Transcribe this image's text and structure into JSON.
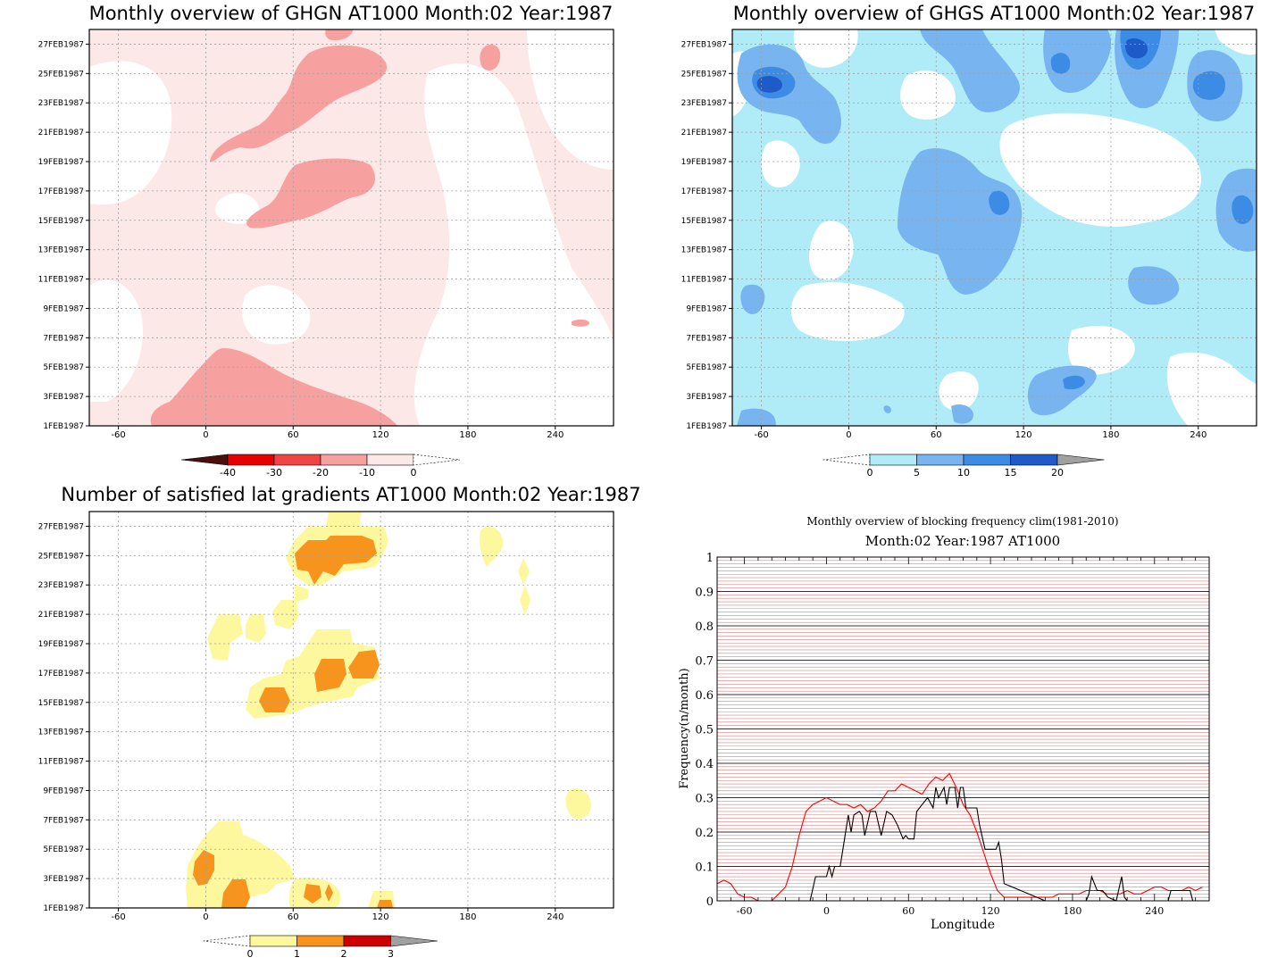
{
  "chart_data": [
    {
      "type": "heatmap",
      "title": "Monthly overview of GHGN AT1000 Month:02 Year:1987",
      "xticks": [
        "-60",
        "0",
        "60",
        "120",
        "180",
        "240"
      ],
      "xtick_values": [
        -60,
        0,
        60,
        120,
        180,
        240
      ],
      "xlim": [
        -80,
        280
      ],
      "yticks": [
        "1FEB1987",
        "3FEB1987",
        "5FEB1987",
        "7FEB1987",
        "9FEB1987",
        "11FEB1987",
        "13FEB1987",
        "15FEB1987",
        "17FEB1987",
        "19FEB1987",
        "21FEB1987",
        "23FEB1987",
        "25FEB1987",
        "27FEB1987"
      ],
      "colorbar": {
        "labels": [
          "-40",
          "-30",
          "-20",
          "-10",
          "0"
        ],
        "colors": [
          "#4a0e0e",
          "#e60000",
          "#f04545",
          "#f7a0a0",
          "#fde8e8"
        ]
      },
      "colors": {
        "light": "#fde8e8",
        "medium": "#f7a0a0"
      }
    },
    {
      "type": "heatmap",
      "title": "Monthly overview of GHGS AT1000 Month:02 Year:1987",
      "xticks": [
        "-60",
        "0",
        "60",
        "120",
        "180",
        "240"
      ],
      "xtick_values": [
        -60,
        0,
        60,
        120,
        180,
        240
      ],
      "xlim": [
        -80,
        280
      ],
      "yticks": [
        "1FEB1987",
        "3FEB1987",
        "5FEB1987",
        "7FEB1987",
        "9FEB1987",
        "11FEB1987",
        "13FEB1987",
        "15FEB1987",
        "17FEB1987",
        "19FEB1987",
        "21FEB1987",
        "23FEB1987",
        "25FEB1987",
        "27FEB1987"
      ],
      "colorbar": {
        "labels": [
          "0",
          "5",
          "10",
          "15",
          "20"
        ],
        "colors": [
          "#b0ecf7",
          "#78b4f0",
          "#3c8ce6",
          "#1e5ac8",
          "#a0a0a0"
        ]
      },
      "colors": {
        "light": "#b0ecf7",
        "medium": "#78b4f0",
        "dark": "#3c8ce6",
        "darkest": "#1e5ac8"
      }
    },
    {
      "type": "heatmap",
      "title": "Number of satisfied lat gradients AT1000 Month:02 Year:1987",
      "xticks": [
        "-60",
        "0",
        "60",
        "120",
        "180",
        "240"
      ],
      "xtick_values": [
        -60,
        0,
        60,
        120,
        180,
        240
      ],
      "xlim": [
        -80,
        280
      ],
      "yticks": [
        "1FEB1987",
        "3FEB1987",
        "5FEB1987",
        "7FEB1987",
        "9FEB1987",
        "11FEB1987",
        "13FEB1987",
        "15FEB1987",
        "17FEB1987",
        "19FEB1987",
        "21FEB1987",
        "23FEB1987",
        "25FEB1987",
        "27FEB1987"
      ],
      "colorbar": {
        "labels": [
          "0",
          "1",
          "2",
          "3"
        ],
        "colors": [
          "#fdf89e",
          "#f7941d",
          "#cc0000",
          "#a0a0a0"
        ]
      },
      "colors": {
        "low": "#fdf89e",
        "mid": "#f7941d"
      }
    },
    {
      "type": "line",
      "title": "Monthly overview of blocking frequency clim(1981-2010)",
      "subtitle": "Month:02 Year:1987  AT1000",
      "xlabel": "Longitude",
      "ylabel": "Frequency(n/month)",
      "xlim": [
        -80,
        280
      ],
      "ylim": [
        0,
        1
      ],
      "xticks": [
        "-60",
        "0",
        "60",
        "120",
        "180",
        "240"
      ],
      "xtick_values": [
        -60,
        0,
        60,
        120,
        180,
        240
      ],
      "yticks": [
        "0",
        "0.1",
        "0.2",
        "0.3",
        "0.4",
        "0.5",
        "0.6",
        "0.7",
        "0.8",
        "0.9",
        "1"
      ],
      "ytick_values": [
        0,
        0.1,
        0.2,
        0.3,
        0.4,
        0.5,
        0.6,
        0.7,
        0.8,
        0.9,
        1
      ],
      "series": [
        {
          "color": "#ff0000",
          "x": [
            -80,
            -75,
            -70,
            -65,
            -60,
            -55,
            -50,
            -45,
            -40,
            -35,
            -30,
            -25,
            -20,
            -15,
            -10,
            -5,
            0,
            5,
            10,
            15,
            20,
            25,
            30,
            35,
            40,
            45,
            50,
            55,
            60,
            65,
            70,
            75,
            80,
            85,
            90,
            95,
            100,
            105,
            110,
            115,
            120,
            125,
            130,
            135,
            140,
            145,
            150,
            155,
            160,
            165,
            170,
            175,
            180,
            185,
            190,
            195,
            200,
            205,
            210,
            215,
            220,
            225,
            230,
            235,
            240,
            245,
            250,
            255,
            260,
            265,
            270,
            275
          ],
          "y": [
            0.05,
            0.06,
            0.05,
            0.02,
            0.01,
            0.01,
            0.0,
            0.0,
            0.0,
            0.02,
            0.04,
            0.1,
            0.19,
            0.26,
            0.28,
            0.29,
            0.3,
            0.29,
            0.28,
            0.28,
            0.27,
            0.28,
            0.26,
            0.27,
            0.29,
            0.32,
            0.32,
            0.34,
            0.33,
            0.32,
            0.31,
            0.34,
            0.36,
            0.35,
            0.37,
            0.33,
            0.28,
            0.25,
            0.2,
            0.14,
            0.08,
            0.03,
            0.01,
            0.01,
            0.01,
            0.01,
            0.01,
            0.01,
            0.01,
            0.01,
            0.02,
            0.02,
            0.02,
            0.02,
            0.03,
            0.03,
            0.03,
            0.02,
            0.02,
            0.02,
            0.03,
            0.02,
            0.02,
            0.03,
            0.04,
            0.04,
            0.03,
            0.03,
            0.03,
            0.04,
            0.03,
            0.04
          ]
        },
        {
          "color": "#000000",
          "x": [
            -12,
            -8,
            -4,
            -2,
            0,
            2,
            4,
            6,
            10,
            14,
            16,
            18,
            20,
            24,
            26,
            28,
            32,
            36,
            40,
            44,
            48,
            52,
            56,
            58,
            60,
            64,
            66,
            70,
            74,
            78,
            80,
            82,
            86,
            88,
            90,
            94,
            96,
            98,
            100,
            102,
            106,
            110,
            112,
            116,
            120,
            124,
            126,
            128,
            130,
            160,
            190,
            192,
            194,
            198,
            202,
            206,
            212,
            216,
            218,
            220,
            250,
            252,
            254,
            260,
            262,
            266,
            268,
            270
          ],
          "y": [
            0,
            0.07,
            0.07,
            0.07,
            0.07,
            0.1,
            0.07,
            0.1,
            0.1,
            0.2,
            0.25,
            0.2,
            0.25,
            0.26,
            0.25,
            0.19,
            0.26,
            0.26,
            0.19,
            0.26,
            0.25,
            0.22,
            0.18,
            0.19,
            0.18,
            0.18,
            0.26,
            0.28,
            0.3,
            0.27,
            0.33,
            0.3,
            0.33,
            0.28,
            0.33,
            0.33,
            0.27,
            0.33,
            0.33,
            0.27,
            0.27,
            0.27,
            0.22,
            0.15,
            0.15,
            0.15,
            0.17,
            0.12,
            0.05,
            0.0,
            0.0,
            0.02,
            0.07,
            0.03,
            0.03,
            0.01,
            0.0,
            0.07,
            0.01,
            0.0,
            0.0,
            0.03,
            0.03,
            0.03,
            0.03,
            0.03,
            0.0,
            0.0
          ]
        }
      ]
    }
  ]
}
